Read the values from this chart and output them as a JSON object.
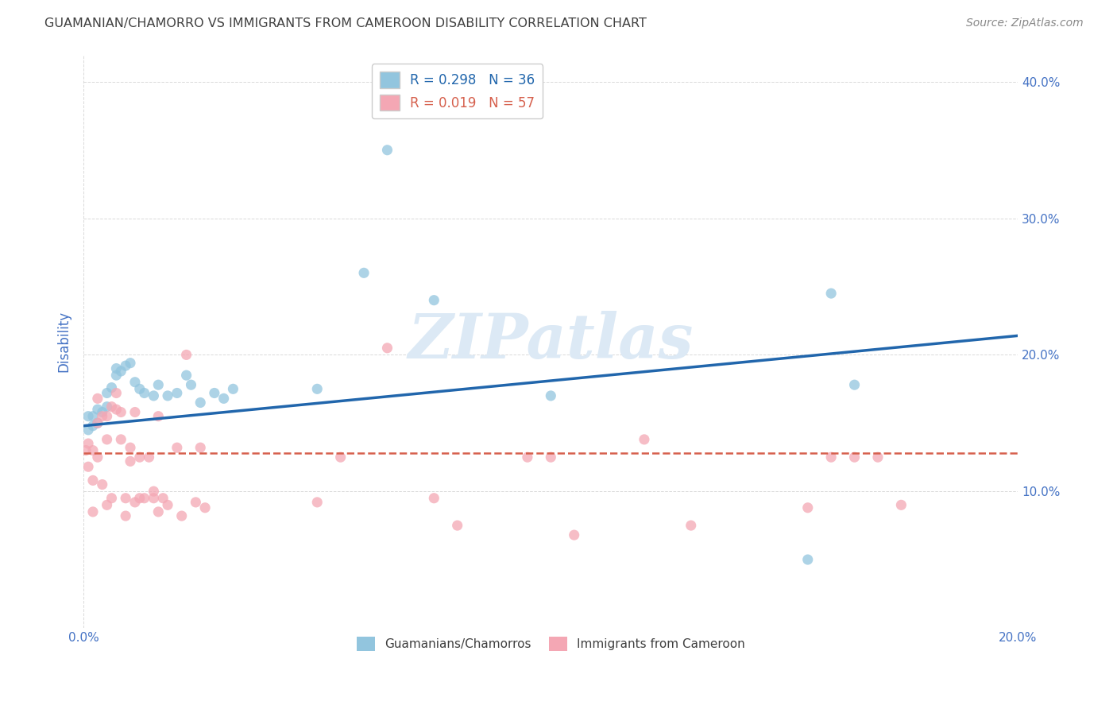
{
  "title": "GUAMANIAN/CHAMORRO VS IMMIGRANTS FROM CAMEROON DISABILITY CORRELATION CHART",
  "source": "Source: ZipAtlas.com",
  "ylabel_label": "Disability",
  "xlim": [
    0.0,
    0.2
  ],
  "ylim": [
    0.0,
    0.42
  ],
  "xticks": [
    0.0,
    0.2
  ],
  "xtick_labels": [
    "0.0%",
    "20.0%"
  ],
  "yticks_right": [
    0.1,
    0.2,
    0.3,
    0.4
  ],
  "ytick_labels_right": [
    "10.0%",
    "20.0%",
    "30.0%",
    "40.0%"
  ],
  "yticks_left": [
    0.1,
    0.2,
    0.3,
    0.4
  ],
  "legend_label1": "Guamanians/Chamorros",
  "legend_label2": "Immigrants from Cameroon",
  "R1": "0.298",
  "N1": "36",
  "R2": "0.019",
  "N2": "57",
  "color_blue": "#92c5de",
  "color_pink": "#f4a7b4",
  "line_color_blue": "#2166ac",
  "line_color_pink": "#d6604d",
  "title_color": "#404040",
  "axis_color": "#4472c4",
  "watermark_color": "#dce9f5",
  "background_color": "#ffffff",
  "grid_color": "#d0d0d0",
  "blue_x": [
    0.001,
    0.001,
    0.002,
    0.002,
    0.003,
    0.003,
    0.004,
    0.005,
    0.005,
    0.006,
    0.007,
    0.007,
    0.008,
    0.009,
    0.01,
    0.011,
    0.012,
    0.013,
    0.015,
    0.016,
    0.018,
    0.02,
    0.022,
    0.023,
    0.025,
    0.028,
    0.03,
    0.032,
    0.05,
    0.06,
    0.065,
    0.075,
    0.1,
    0.155,
    0.16,
    0.165
  ],
  "blue_y": [
    0.155,
    0.145,
    0.155,
    0.148,
    0.16,
    0.15,
    0.158,
    0.162,
    0.172,
    0.176,
    0.185,
    0.19,
    0.188,
    0.192,
    0.194,
    0.18,
    0.175,
    0.172,
    0.17,
    0.178,
    0.17,
    0.172,
    0.185,
    0.178,
    0.165,
    0.172,
    0.168,
    0.175,
    0.175,
    0.26,
    0.35,
    0.24,
    0.17,
    0.05,
    0.245,
    0.178
  ],
  "pink_x": [
    0.0005,
    0.001,
    0.001,
    0.002,
    0.002,
    0.002,
    0.003,
    0.003,
    0.003,
    0.004,
    0.004,
    0.005,
    0.005,
    0.005,
    0.006,
    0.006,
    0.007,
    0.007,
    0.008,
    0.008,
    0.009,
    0.009,
    0.01,
    0.01,
    0.011,
    0.011,
    0.012,
    0.012,
    0.013,
    0.014,
    0.015,
    0.015,
    0.016,
    0.016,
    0.017,
    0.018,
    0.02,
    0.021,
    0.022,
    0.024,
    0.025,
    0.026,
    0.05,
    0.055,
    0.065,
    0.075,
    0.08,
    0.095,
    0.1,
    0.105,
    0.12,
    0.13,
    0.155,
    0.16,
    0.165,
    0.17,
    0.175
  ],
  "pink_y": [
    0.13,
    0.135,
    0.118,
    0.13,
    0.108,
    0.085,
    0.15,
    0.168,
    0.125,
    0.155,
    0.105,
    0.138,
    0.155,
    0.09,
    0.162,
    0.095,
    0.16,
    0.172,
    0.138,
    0.158,
    0.095,
    0.082,
    0.122,
    0.132,
    0.158,
    0.092,
    0.095,
    0.125,
    0.095,
    0.125,
    0.1,
    0.095,
    0.085,
    0.155,
    0.095,
    0.09,
    0.132,
    0.082,
    0.2,
    0.092,
    0.132,
    0.088,
    0.092,
    0.125,
    0.205,
    0.095,
    0.075,
    0.125,
    0.125,
    0.068,
    0.138,
    0.075,
    0.088,
    0.125,
    0.125,
    0.125,
    0.09
  ],
  "blue_line_x0": 0.0,
  "blue_line_x1": 0.2,
  "blue_line_y0": 0.148,
  "blue_line_y1": 0.214,
  "pink_line_x0": 0.0,
  "pink_line_x1": 0.2,
  "pink_line_y0": 0.128,
  "pink_line_y1": 0.128
}
